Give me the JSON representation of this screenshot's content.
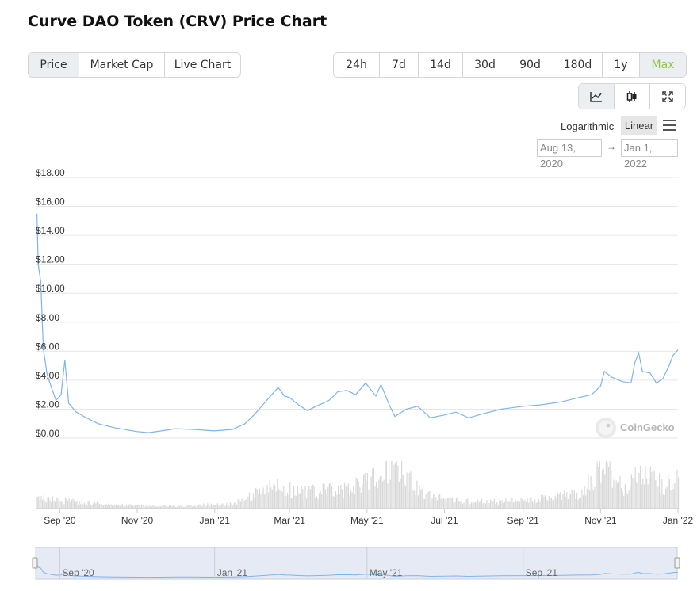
{
  "page_title": "Curve DAO Token (CRV) Price Chart",
  "tabs": [
    "Price",
    "Market Cap",
    "Live Chart"
  ],
  "ranges": [
    "24h",
    "7d",
    "14d",
    "30d",
    "90d",
    "180d",
    "1y",
    "Max"
  ],
  "view_icons": [
    "line-chart-icon",
    "candlestick-icon",
    "expand-icon"
  ],
  "scale": {
    "logarithmic": "Logarithmic",
    "linear": "Linear",
    "selected": "Linear"
  },
  "date_range": {
    "from": "Aug 13, 2020",
    "to": "Jan 1, 2022",
    "separator": "→"
  },
  "watermark": "CoinGecko",
  "colors": {
    "line": "#7cb5ec",
    "volume": "#d8d8d8",
    "accent": "#8dc63f",
    "navigator_fill": "#dfe5f2"
  },
  "chart_data": {
    "type": "line",
    "series": [
      {
        "values": [
          [
            "2020-08-14",
            15.5
          ],
          [
            "2020-08-15",
            12.0
          ],
          [
            "2020-08-17",
            10.8
          ],
          [
            "2020-08-19",
            6.2
          ],
          [
            "2020-08-22",
            4.4
          ],
          [
            "2020-08-25",
            3.6
          ],
          [
            "2020-08-29",
            2.6
          ],
          [
            "2020-09-02",
            3.0
          ],
          [
            "2020-09-05",
            5.4
          ],
          [
            "2020-09-08",
            2.4
          ],
          [
            "2020-09-14",
            1.8
          ],
          [
            "2020-09-22",
            1.4
          ],
          [
            "2020-10-01",
            1.0
          ],
          [
            "2020-10-15",
            0.7
          ],
          [
            "2020-11-01",
            0.45
          ],
          [
            "2020-11-10",
            0.38
          ],
          [
            "2020-11-20",
            0.5
          ],
          [
            "2020-12-01",
            0.65
          ],
          [
            "2020-12-15",
            0.6
          ],
          [
            "2021-01-01",
            0.5
          ],
          [
            "2021-01-15",
            0.6
          ],
          [
            "2021-01-25",
            1.0
          ],
          [
            "2021-02-01",
            1.6
          ],
          [
            "2021-02-08",
            2.3
          ],
          [
            "2021-02-15",
            3.0
          ],
          [
            "2021-02-20",
            3.5
          ],
          [
            "2021-02-25",
            2.9
          ],
          [
            "2021-03-01",
            2.8
          ],
          [
            "2021-03-08",
            2.3
          ],
          [
            "2021-03-15",
            1.9
          ],
          [
            "2021-03-22",
            2.2
          ],
          [
            "2021-04-01",
            2.6
          ],
          [
            "2021-04-08",
            3.2
          ],
          [
            "2021-04-15",
            3.3
          ],
          [
            "2021-04-22",
            3.0
          ],
          [
            "2021-04-30",
            3.8
          ],
          [
            "2021-05-08",
            2.9
          ],
          [
            "2021-05-12",
            3.7
          ],
          [
            "2021-05-19",
            2.2
          ],
          [
            "2021-05-23",
            1.5
          ],
          [
            "2021-06-01",
            2.0
          ],
          [
            "2021-06-10",
            2.2
          ],
          [
            "2021-06-20",
            1.4
          ],
          [
            "2021-07-01",
            1.6
          ],
          [
            "2021-07-10",
            1.8
          ],
          [
            "2021-07-20",
            1.4
          ],
          [
            "2021-08-01",
            1.7
          ],
          [
            "2021-08-15",
            2.0
          ],
          [
            "2021-09-01",
            2.2
          ],
          [
            "2021-09-15",
            2.3
          ],
          [
            "2021-10-01",
            2.5
          ],
          [
            "2021-10-15",
            2.8
          ],
          [
            "2021-10-25",
            3.0
          ],
          [
            "2021-11-01",
            3.6
          ],
          [
            "2021-11-04",
            4.6
          ],
          [
            "2021-11-10",
            4.2
          ],
          [
            "2021-11-18",
            3.9
          ],
          [
            "2021-11-25",
            3.8
          ],
          [
            "2021-11-28",
            5.2
          ],
          [
            "2021-12-01",
            5.9
          ],
          [
            "2021-12-04",
            4.6
          ],
          [
            "2021-12-10",
            4.5
          ],
          [
            "2021-12-15",
            3.8
          ],
          [
            "2021-12-20",
            4.1
          ],
          [
            "2021-12-25",
            5.0
          ],
          [
            "2021-12-28",
            5.7
          ],
          [
            "2022-01-01",
            6.1
          ]
        ]
      }
    ],
    "volume": [
      [
        "2020-08-20",
        0.2
      ],
      [
        "2020-09-10",
        0.15
      ],
      [
        "2020-10-10",
        0.08
      ],
      [
        "2020-11-10",
        0.06
      ],
      [
        "2020-12-10",
        0.06
      ],
      [
        "2021-01-15",
        0.1
      ],
      [
        "2021-02-15",
        0.45
      ],
      [
        "2021-03-15",
        0.35
      ],
      [
        "2021-04-15",
        0.4
      ],
      [
        "2021-04-28",
        0.55
      ],
      [
        "2021-05-12",
        0.7
      ],
      [
        "2021-05-20",
        1.0
      ],
      [
        "2021-06-15",
        0.3
      ],
      [
        "2021-07-15",
        0.15
      ],
      [
        "2021-08-15",
        0.15
      ],
      [
        "2021-09-15",
        0.2
      ],
      [
        "2021-10-15",
        0.3
      ],
      [
        "2021-11-05",
        0.9
      ],
      [
        "2021-11-20",
        0.4
      ],
      [
        "2021-12-04",
        0.85
      ],
      [
        "2021-12-20",
        0.45
      ],
      [
        "2022-01-01",
        0.75
      ]
    ],
    "y_ticks": [
      "$0.00",
      "$2.00",
      "$4.00",
      "$6.00",
      "$8.00",
      "$10.00",
      "$12.00",
      "$14.00",
      "$16.00",
      "$18.00"
    ],
    "ylim": [
      0,
      18
    ],
    "x_ticks": [
      [
        "2020-09-01",
        "Sep '20"
      ],
      [
        "2020-11-01",
        "Nov '20"
      ],
      [
        "2021-01-01",
        "Jan '21"
      ],
      [
        "2021-03-01",
        "Mar '21"
      ],
      [
        "2021-05-01",
        "May '21"
      ],
      [
        "2021-07-01",
        "Jul '21"
      ],
      [
        "2021-09-01",
        "Sep '21"
      ],
      [
        "2021-11-01",
        "Nov '21"
      ],
      [
        "2022-01-01",
        "Jan '22"
      ]
    ],
    "xlim": [
      "2020-08-13",
      "2022-01-01"
    ],
    "navigator_ticks": [
      [
        "2020-09-01",
        "Sep '20"
      ],
      [
        "2021-01-01",
        "Jan '21"
      ],
      [
        "2021-05-01",
        "May '21"
      ],
      [
        "2021-09-01",
        "Sep '21"
      ]
    ],
    "grid": true
  }
}
